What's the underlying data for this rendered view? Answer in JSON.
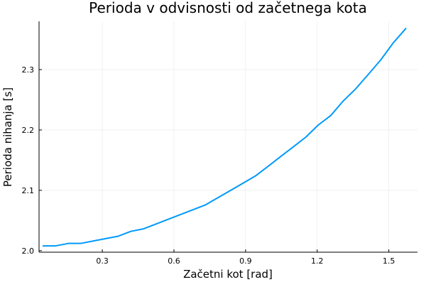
{
  "chart_data": {
    "type": "line",
    "title": "Perioda v odvisnosti od začetnega kota",
    "xlabel": "Začetni kot [rad]",
    "ylabel": "Perioda nihanja [s]",
    "xlim": [
      0.035,
      1.62
    ],
    "ylim": [
      1.9975,
      2.38
    ],
    "xticks": [
      0.3,
      0.6,
      0.9,
      1.2,
      1.5
    ],
    "xtick_labels": [
      "0.3",
      "0.6",
      "0.9",
      "1.2",
      "1.5"
    ],
    "yticks": [
      2.0,
      2.1,
      2.2,
      2.3
    ],
    "ytick_labels": [
      "2.0",
      "2.1",
      "2.2",
      "2.3"
    ],
    "grid": true,
    "legend": false,
    "line_color": "#009AFA",
    "series": [
      {
        "x": [
          0.052,
          0.105,
          0.157,
          0.209,
          0.262,
          0.314,
          0.367,
          0.419,
          0.471,
          0.524,
          0.576,
          0.628,
          0.681,
          0.733,
          0.785,
          0.838,
          0.89,
          0.942,
          0.995,
          1.047,
          1.1,
          1.152,
          1.204,
          1.257,
          1.309,
          1.361,
          1.414,
          1.466,
          1.518,
          1.571
        ],
        "y": [
          2.008,
          2.008,
          2.012,
          2.012,
          2.016,
          2.02,
          2.024,
          2.032,
          2.036,
          2.044,
          2.052,
          2.06,
          2.068,
          2.076,
          2.088,
          2.1,
          2.112,
          2.124,
          2.14,
          2.156,
          2.172,
          2.188,
          2.208,
          2.224,
          2.248,
          2.268,
          2.292,
          2.316,
          2.344,
          2.368
        ]
      }
    ]
  }
}
